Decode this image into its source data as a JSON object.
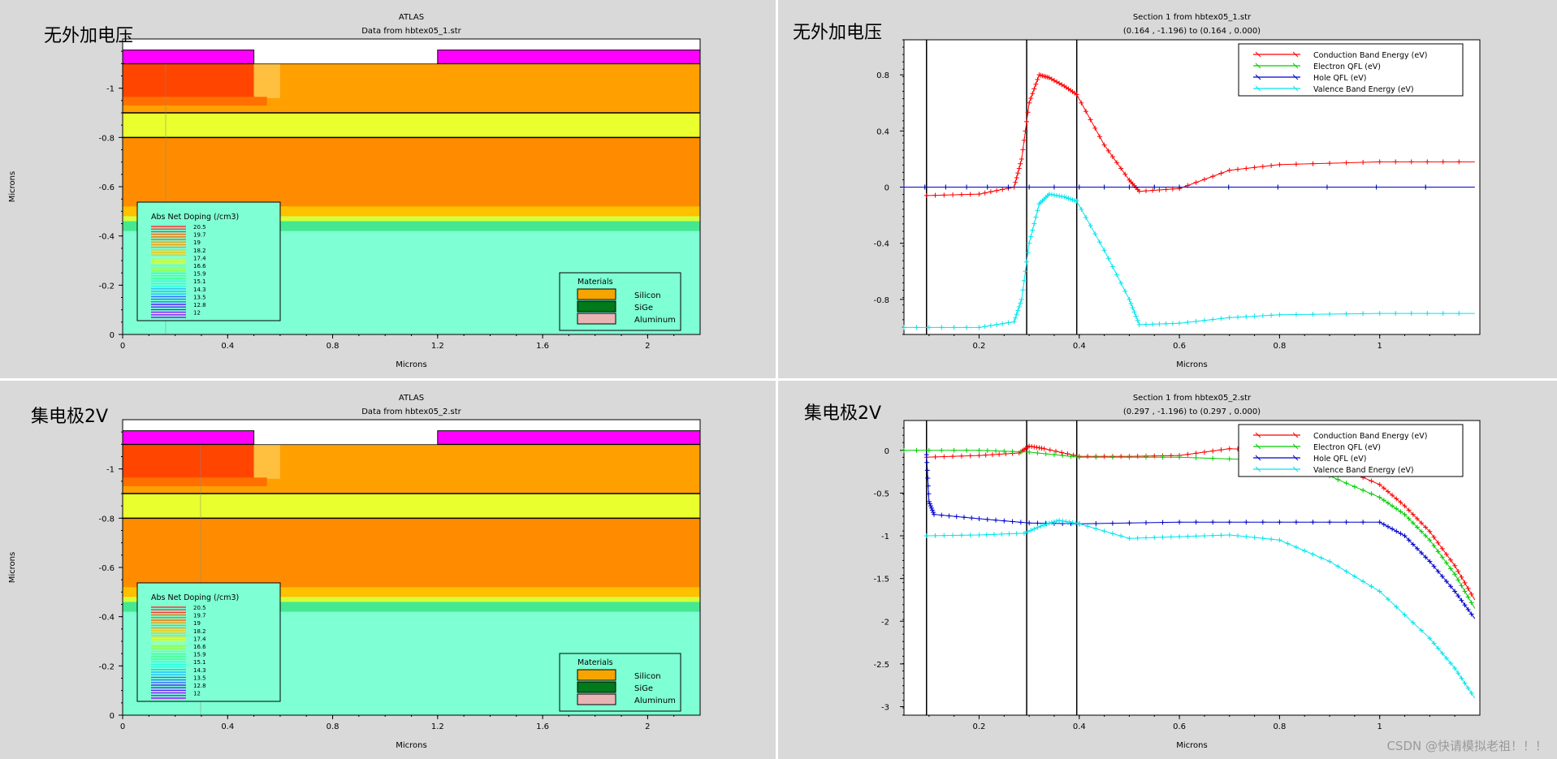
{
  "panels": {
    "tl": {
      "overlay_label": "无外加电压",
      "title": "ATLAS",
      "subtitle": "Data from hbtex05_1.str"
    },
    "tr": {
      "overlay_label": "无外加电压",
      "title": "Section 1 from hbtex05_1.str",
      "subtitle": "(0.164 , -1.196) to (0.164 , 0.000)"
    },
    "bl": {
      "overlay_label": "集电极2V",
      "title": "ATLAS",
      "subtitle": "Data from hbtex05_2.str"
    },
    "br": {
      "overlay_label": "集电极2V",
      "title": "Section 1 from hbtex05_2.str",
      "subtitle": "(0.297 , -1.196) to (0.297 , 0.000)"
    }
  },
  "watermark": "CSDN @快请模拟老祖！！！",
  "chart_data": [
    {
      "id": "tl",
      "type": "heatmap",
      "xlabel": "Microns",
      "ylabel": "Microns",
      "x_ticks": [
        "0",
        "0.4",
        "0.8",
        "1.2",
        "1.6",
        "2"
      ],
      "y_ticks": [
        "0",
        "-0.2",
        "-0.4",
        "-0.6",
        "-0.8",
        "-1"
      ],
      "xlim": [
        0,
        2.2
      ],
      "ylim": [
        0,
        -1.2
      ],
      "legend_doping": {
        "title": "Abs Net Doping (/cm3)",
        "levels": [
          "20.5",
          "19.7",
          "19",
          "18.2",
          "17.4",
          "16.6",
          "15.9",
          "15.1",
          "14.3",
          "13.5",
          "12.8",
          "12"
        ]
      },
      "legend_materials": {
        "title": "Materials",
        "items": [
          {
            "name": "Silicon",
            "color": "#f5a400"
          },
          {
            "name": "SiGe",
            "color": "#007a1a"
          },
          {
            "name": "Aluminum",
            "color": "#e8b4b4"
          }
        ]
      },
      "cut_line_x": 0.164
    },
    {
      "id": "tr",
      "type": "line",
      "xlabel": "Microns",
      "ylabel": "",
      "xlim": [
        0.05,
        1.2
      ],
      "ylim": [
        -1.05,
        1.05
      ],
      "x_ticks": [
        "0.2",
        "0.4",
        "0.6",
        "0.8",
        "1"
      ],
      "y_ticks": [
        "0.8",
        "0.4",
        "0",
        "-0.4",
        "-0.8"
      ],
      "legend": "top-right",
      "series": [
        {
          "name": "Conduction Band Energy (eV)",
          "color": "#ff0000",
          "x": [
            0.095,
            0.2,
            0.27,
            0.285,
            0.3,
            0.32,
            0.34,
            0.37,
            0.395,
            0.45,
            0.5,
            0.52,
            0.6,
            0.7,
            0.8,
            1.0,
            1.19
          ],
          "y": [
            -0.06,
            -0.05,
            0.0,
            0.2,
            0.6,
            0.8,
            0.78,
            0.72,
            0.66,
            0.3,
            0.05,
            -0.03,
            -0.01,
            0.12,
            0.16,
            0.18,
            0.18
          ]
        },
        {
          "name": "Electron QFL (eV)",
          "color": "#00cc00",
          "x": [
            0.05,
            0.3,
            0.6,
            1.19
          ],
          "y": [
            0,
            0,
            0,
            0
          ]
        },
        {
          "name": "Hole QFL (eV)",
          "color": "#0000cc",
          "x": [
            0.05,
            0.3,
            0.6,
            1.19
          ],
          "y": [
            0,
            0,
            0,
            0
          ]
        },
        {
          "name": "Valence Band Energy (eV)",
          "color": "#00e5ee",
          "x": [
            0.05,
            0.2,
            0.27,
            0.285,
            0.3,
            0.32,
            0.34,
            0.37,
            0.395,
            0.45,
            0.5,
            0.52,
            0.6,
            0.7,
            0.8,
            1.0,
            1.19
          ],
          "y": [
            -1.0,
            -1.0,
            -0.96,
            -0.8,
            -0.4,
            -0.12,
            -0.05,
            -0.07,
            -0.1,
            -0.45,
            -0.8,
            -0.98,
            -0.97,
            -0.93,
            -0.91,
            -0.9,
            -0.9
          ]
        }
      ],
      "vlines": [
        0.095,
        0.295,
        0.395
      ]
    },
    {
      "id": "bl",
      "type": "heatmap",
      "xlabel": "Microns",
      "ylabel": "Microns",
      "x_ticks": [
        "0",
        "0.4",
        "0.8",
        "1.2",
        "1.6",
        "2"
      ],
      "y_ticks": [
        "0",
        "-0.2",
        "-0.4",
        "-0.6",
        "-0.8",
        "-1"
      ],
      "xlim": [
        0,
        2.2
      ],
      "ylim": [
        0,
        -1.2
      ],
      "legend_doping": {
        "title": "Abs Net Doping (/cm3)",
        "levels": [
          "20.5",
          "19.7",
          "19",
          "18.2",
          "17.4",
          "16.6",
          "15.9",
          "15.1",
          "14.3",
          "13.5",
          "12.8",
          "12"
        ]
      },
      "legend_materials": {
        "title": "Materials",
        "items": [
          {
            "name": "Silicon",
            "color": "#f5a400"
          },
          {
            "name": "SiGe",
            "color": "#007a1a"
          },
          {
            "name": "Aluminum",
            "color": "#e8b4b4"
          }
        ]
      },
      "cut_line_x": 0.297
    },
    {
      "id": "br",
      "type": "line",
      "xlabel": "Microns",
      "ylabel": "",
      "xlim": [
        0.05,
        1.2
      ],
      "ylim": [
        -3.1,
        0.35
      ],
      "x_ticks": [
        "0.2",
        "0.4",
        "0.6",
        "0.8",
        "1"
      ],
      "y_ticks": [
        "0",
        "-0.5",
        "-1",
        "-1.5",
        "-2",
        "-2.5",
        "-3"
      ],
      "legend": "top-right",
      "series": [
        {
          "name": "Conduction Band Energy (eV)",
          "color": "#ff0000",
          "x": [
            0.095,
            0.2,
            0.28,
            0.3,
            0.33,
            0.4,
            0.5,
            0.6,
            0.7,
            0.8,
            0.9,
            1.0,
            1.05,
            1.1,
            1.15,
            1.19
          ],
          "y": [
            -0.08,
            -0.06,
            -0.03,
            0.05,
            0.02,
            -0.07,
            -0.07,
            -0.06,
            0.02,
            0.0,
            -0.15,
            -0.4,
            -0.65,
            -0.95,
            -1.35,
            -1.75
          ]
        },
        {
          "name": "Electron QFL (eV)",
          "color": "#00cc00",
          "x": [
            0.05,
            0.2,
            0.3,
            0.4,
            0.6,
            0.8,
            0.9,
            1.0,
            1.05,
            1.1,
            1.15,
            1.19
          ],
          "y": [
            0,
            0,
            -0.02,
            -0.08,
            -0.08,
            -0.12,
            -0.3,
            -0.55,
            -0.75,
            -1.05,
            -1.45,
            -1.85
          ]
        },
        {
          "name": "Hole QFL (eV)",
          "color": "#0000cc",
          "x": [
            0.095,
            0.1,
            0.11,
            0.2,
            0.3,
            0.4,
            0.6,
            0.8,
            1.0,
            1.05,
            1.1,
            1.15,
            1.19
          ],
          "y": [
            -0.05,
            -0.6,
            -0.75,
            -0.8,
            -0.85,
            -0.86,
            -0.84,
            -0.84,
            -0.84,
            -1.0,
            -1.3,
            -1.65,
            -1.97
          ]
        },
        {
          "name": "Valence Band Energy (eV)",
          "color": "#00e5ee",
          "x": [
            0.095,
            0.2,
            0.29,
            0.33,
            0.36,
            0.4,
            0.5,
            0.6,
            0.7,
            0.8,
            0.9,
            1.0,
            1.1,
            1.15,
            1.19
          ],
          "y": [
            -1.0,
            -0.99,
            -0.97,
            -0.87,
            -0.82,
            -0.86,
            -1.03,
            -1.01,
            -0.99,
            -1.05,
            -1.3,
            -1.65,
            -2.2,
            -2.55,
            -2.9
          ]
        }
      ],
      "vlines": [
        0.095,
        0.295,
        0.395
      ]
    }
  ]
}
